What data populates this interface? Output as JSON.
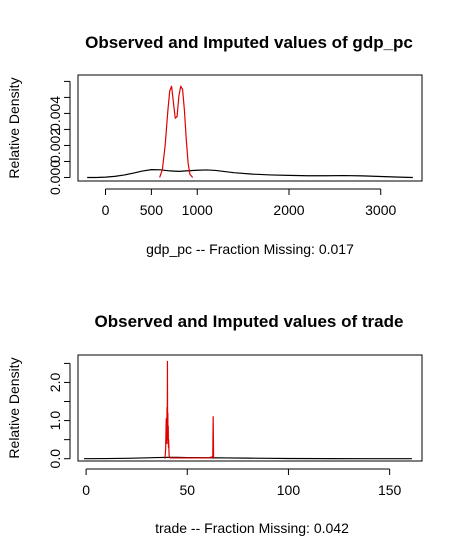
{
  "chart_data": [
    {
      "type": "line",
      "title": "Observed and Imputed values of gdp_pc",
      "xlabel": "gdp_pc  --  Fraction Missing: 0.017",
      "ylabel": "Relative Density",
      "xlim": [
        -300,
        3450
      ],
      "ylim": [
        -0.00022,
        0.0064
      ],
      "xticks": [
        0,
        500,
        1000,
        2000,
        3000
      ],
      "xtick_labels": [
        "0",
        "500",
        "1000",
        "2000",
        "3000"
      ],
      "yticks": [
        0.0,
        0.001,
        0.002,
        0.003,
        0.004,
        0.005,
        0.006
      ],
      "ytick_labels": [
        "0.000",
        "",
        "0.002",
        "",
        "0.004",
        "",
        ""
      ],
      "grid": false,
      "series": [
        {
          "color": "#000000",
          "x": [
            -200,
            -100,
            0,
            100,
            200,
            300,
            400,
            500,
            600,
            700,
            800,
            900,
            1000,
            1100,
            1200,
            1300,
            1400,
            1600,
            1800,
            2000,
            2200,
            2400,
            2600,
            2800,
            3000,
            3200,
            3350
          ],
          "y": [
            0.0,
            0.0,
            2e-05,
            7e-05,
            0.00015,
            0.00027,
            0.0004,
            0.00049,
            0.00048,
            0.00041,
            0.00038,
            0.00042,
            0.00045,
            0.00047,
            0.00044,
            0.00037,
            0.0003,
            0.00021,
            0.00016,
            0.00013,
            0.00011,
            0.00011,
            0.00012,
            0.0001,
            6e-05,
            2e-05,
            0.0
          ]
        },
        {
          "color": "#e00000",
          "x": [
            590,
            620,
            650,
            680,
            700,
            720,
            740,
            760,
            780,
            800,
            820,
            840,
            860,
            880,
            900,
            920,
            950
          ],
          "y": [
            0.0,
            0.0005,
            0.002,
            0.0042,
            0.0054,
            0.0057,
            0.0047,
            0.0037,
            0.0038,
            0.0051,
            0.0057,
            0.0055,
            0.0042,
            0.0024,
            0.0009,
            0.0002,
            0.0
          ]
        }
      ]
    },
    {
      "type": "line",
      "title": "Observed and Imputed values of trade",
      "xlabel": "trade   --  Fraction Missing: 0.042",
      "ylabel": "Relative Density",
      "xlim": [
        -4,
        166
      ],
      "ylim": [
        -0.06,
        2.72
      ],
      "xticks": [
        0,
        50,
        100,
        150
      ],
      "xtick_labels": [
        "0",
        "50",
        "100",
        "150"
      ],
      "yticks": [
        0.0,
        0.5,
        1.0,
        1.5,
        2.0,
        2.5
      ],
      "ytick_labels": [
        "0.0",
        "",
        "1.0",
        "",
        "2.0",
        ""
      ],
      "grid": false,
      "series": [
        {
          "color": "#000000",
          "x": [
            -1,
            10,
            20,
            28,
            35,
            40,
            45,
            50,
            60,
            70,
            80,
            90,
            100,
            120,
            140,
            161
          ],
          "y": [
            0.0,
            0.004,
            0.01,
            0.02,
            0.03,
            0.035,
            0.035,
            0.03,
            0.025,
            0.02,
            0.015,
            0.01,
            0.006,
            0.003,
            0.001,
            0.0
          ]
        },
        {
          "color": "#e00000",
          "x": [
            39.0,
            39.3,
            39.6,
            39.8,
            40.0,
            40.1,
            40.2,
            40.3,
            40.4,
            40.5,
            40.6,
            40.7,
            40.8,
            41.0,
            41.2,
            41.5,
            45,
            50,
            55,
            60,
            62.6,
            62.7,
            62.8,
            62.9,
            63.0,
            63.2
          ],
          "y": [
            0.0,
            0.25,
            1.05,
            0.4,
            1.35,
            0.5,
            2.55,
            0.6,
            1.2,
            0.4,
            0.85,
            0.3,
            0.5,
            0.1,
            0.05,
            0.02,
            0.02,
            0.02,
            0.02,
            0.02,
            0.05,
            0.6,
            1.1,
            0.6,
            0.05,
            0.0
          ]
        }
      ]
    }
  ]
}
